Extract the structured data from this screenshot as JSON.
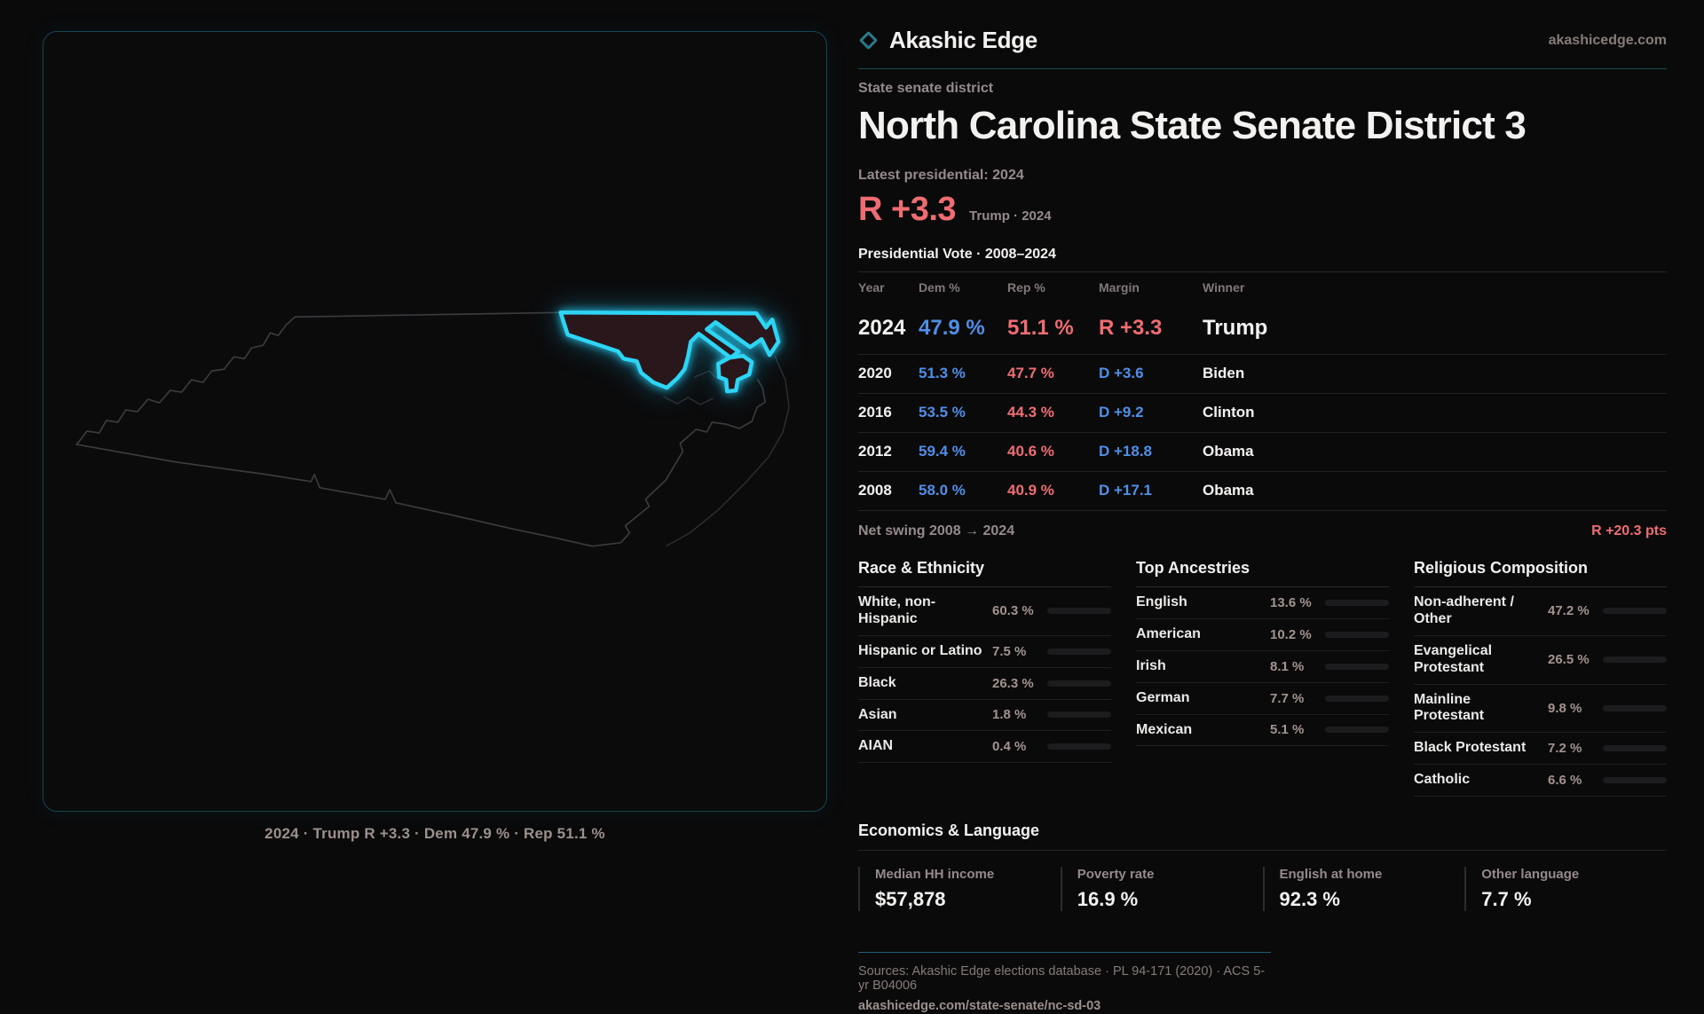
{
  "brand": {
    "name": "Akashic Edge",
    "domain": "akashicedge.com"
  },
  "header": {
    "kicker": "State senate district",
    "title": "North Carolina State Senate District 3",
    "latest_label": "Latest presidential: 2024",
    "margin_big": "R +3.3",
    "margin_sub": "Trump · 2024"
  },
  "map": {
    "caption": "2024 · Trump R +3.3 · Dem 47.9 % · Rep 51.1 %"
  },
  "table": {
    "title": "Presidential Vote · 2008–2024",
    "columns": [
      "Year",
      "Dem %",
      "Rep %",
      "Margin",
      "Winner"
    ],
    "rows": [
      {
        "year": "2024",
        "dem": "47.9 %",
        "rep": "51.1 %",
        "margin": "R +3.3",
        "winner": "Trump",
        "featured": true
      },
      {
        "year": "2020",
        "dem": "51.3 %",
        "rep": "47.7 %",
        "margin": "D +3.6",
        "winner": "Biden",
        "featured": false
      },
      {
        "year": "2016",
        "dem": "53.5 %",
        "rep": "44.3 %",
        "margin": "D +9.2",
        "winner": "Clinton",
        "featured": false
      },
      {
        "year": "2012",
        "dem": "59.4 %",
        "rep": "40.6 %",
        "margin": "D +18.8",
        "winner": "Obama",
        "featured": false
      },
      {
        "year": "2008",
        "dem": "58.0 %",
        "rep": "40.9 %",
        "margin": "D +17.1",
        "winner": "Obama",
        "featured": false
      }
    ],
    "net_swing_label": "Net swing 2008 → 2024",
    "net_swing_value": "R +20.3 pts"
  },
  "demographics": {
    "sections": [
      {
        "title": "Race & Ethnicity",
        "items": [
          {
            "label": "White, non-Hispanic",
            "value": "60.3 %",
            "pct": 60.3,
            "color": "#8fa9c4"
          },
          {
            "label": "Hispanic or Latino",
            "value": "7.5 %",
            "pct": 7.5,
            "color": "#e09b2d"
          },
          {
            "label": "Black",
            "value": "26.3 %",
            "pct": 26.3,
            "color": "#8d7ce0"
          },
          {
            "label": "Asian",
            "value": "1.8 %",
            "pct": 1.8,
            "color": "#2fae71"
          },
          {
            "label": "AIAN",
            "value": "0.4 %",
            "pct": 0.4,
            "color": "#8fa9c4"
          }
        ]
      },
      {
        "title": "Top Ancestries",
        "items": [
          {
            "label": "English",
            "value": "13.6 %",
            "pct": 13.6,
            "color": "#8fa9c4"
          },
          {
            "label": "American",
            "value": "10.2 %",
            "pct": 10.2,
            "color": "#8fa9c4"
          },
          {
            "label": "Irish",
            "value": "8.1 %",
            "pct": 8.1,
            "color": "#8fa9c4"
          },
          {
            "label": "German",
            "value": "7.7 %",
            "pct": 7.7,
            "color": "#8fa9c4"
          },
          {
            "label": "Mexican",
            "value": "5.1 %",
            "pct": 5.1,
            "color": "#e09b2d"
          }
        ]
      },
      {
        "title": "Religious Composition",
        "items": [
          {
            "label": "Non-adherent / Other",
            "value": "47.2 %",
            "pct": 47.2,
            "color": "#76879c"
          },
          {
            "label": "Evangelical Protestant",
            "value": "26.5 %",
            "pct": 26.5,
            "color": "#e0636c"
          },
          {
            "label": "Mainline Protestant",
            "value": "9.8 %",
            "pct": 9.8,
            "color": "#4a90e2"
          },
          {
            "label": "Black Protestant",
            "value": "7.2 %",
            "pct": 7.2,
            "color": "#9b7ade"
          },
          {
            "label": "Catholic",
            "value": "6.6 %",
            "pct": 6.6,
            "color": "#e6b31e"
          }
        ]
      }
    ]
  },
  "economics": {
    "title": "Economics & Language",
    "stats": [
      {
        "label": "Median HH income",
        "value": "$57,878"
      },
      {
        "label": "Poverty rate",
        "value": "16.9 %"
      },
      {
        "label": "English at home",
        "value": "92.3 %"
      },
      {
        "label": "Other language",
        "value": "7.7 %"
      }
    ]
  },
  "footer": {
    "sources": "Sources: Akashic Edge elections database · PL 94-171 (2020) · ACS 5-yr B04006",
    "permalink": "akashicedge.com/state-senate/nc-sd-03"
  },
  "colors": {
    "district_accent": "#2ed4f4",
    "teal_rule": "#174a55",
    "rep_red": "#ef6d72",
    "dem_blue": "#4e8fe8",
    "background": "#0a0a0b"
  }
}
